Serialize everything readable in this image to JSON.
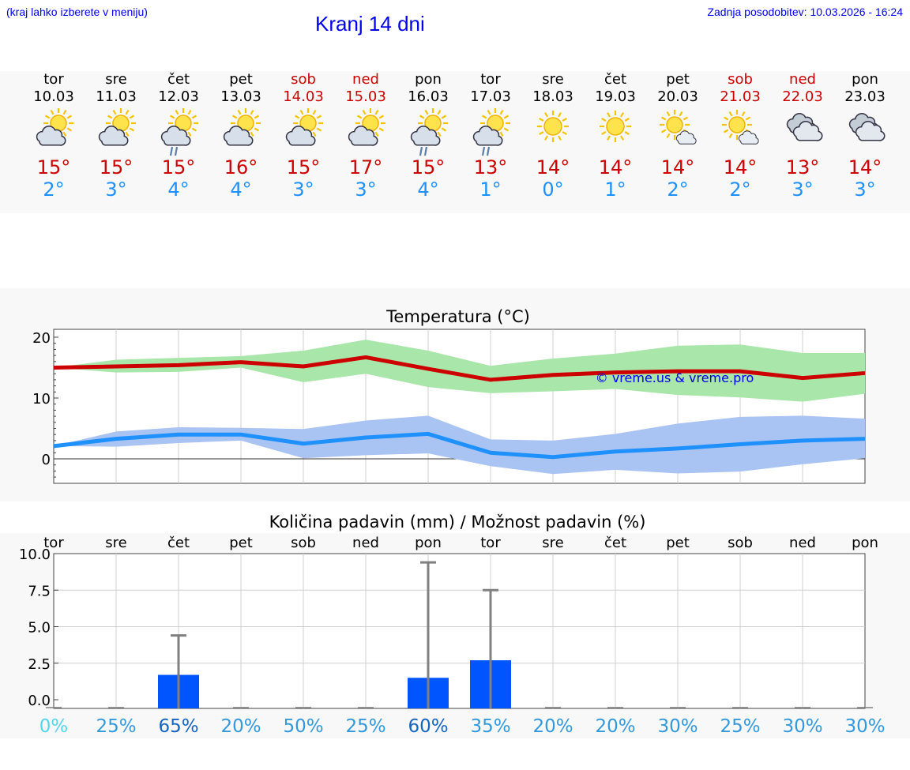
{
  "header": {
    "hint": "(kraj lahko izberete v meniju)",
    "title": "Kranj 14 dni",
    "updated": "Zadnja posodobitev: 10.03.2026 - 16:24"
  },
  "colors": {
    "max": "#cc0000",
    "min": "#1e90ff",
    "link": "#0000ee",
    "rain": "#0055ff"
  },
  "days": [
    {
      "name": "tor",
      "date": "10.03",
      "weekend": false,
      "icon": "sun-cloud-icon",
      "max": "15°",
      "min": "2°"
    },
    {
      "name": "sre",
      "date": "11.03",
      "weekend": false,
      "icon": "sun-cloud-icon",
      "max": "15°",
      "min": "3°"
    },
    {
      "name": "čet",
      "date": "12.03",
      "weekend": false,
      "icon": "sun-cloud-rain-icon",
      "max": "15°",
      "min": "4°"
    },
    {
      "name": "pet",
      "date": "13.03",
      "weekend": false,
      "icon": "sun-cloud-icon",
      "max": "16°",
      "min": "4°"
    },
    {
      "name": "sob",
      "date": "14.03",
      "weekend": true,
      "icon": "sun-cloud-icon",
      "max": "15°",
      "min": "3°"
    },
    {
      "name": "ned",
      "date": "15.03",
      "weekend": true,
      "icon": "sun-cloud-icon",
      "max": "17°",
      "min": "3°"
    },
    {
      "name": "pon",
      "date": "16.03",
      "weekend": false,
      "icon": "sun-cloud-rain-icon",
      "max": "15°",
      "min": "4°"
    },
    {
      "name": "tor",
      "date": "17.03",
      "weekend": false,
      "icon": "sun-cloud-rain-icon",
      "max": "13°",
      "min": "1°"
    },
    {
      "name": "sre",
      "date": "18.03",
      "weekend": false,
      "icon": "sun-icon",
      "max": "14°",
      "min": "0°"
    },
    {
      "name": "čet",
      "date": "19.03",
      "weekend": false,
      "icon": "sun-icon",
      "max": "14°",
      "min": "1°"
    },
    {
      "name": "pet",
      "date": "20.03",
      "weekend": false,
      "icon": "sun-small-cloud-icon",
      "max": "14°",
      "min": "2°"
    },
    {
      "name": "sob",
      "date": "21.03",
      "weekend": true,
      "icon": "sun-small-cloud-icon",
      "max": "14°",
      "min": "2°"
    },
    {
      "name": "ned",
      "date": "22.03",
      "weekend": true,
      "icon": "cloud-icon",
      "max": "13°",
      "min": "3°"
    },
    {
      "name": "pon",
      "date": "23.03",
      "weekend": false,
      "icon": "cloud-icon",
      "max": "14°",
      "min": "3°"
    }
  ],
  "chart_data": [
    {
      "type": "line",
      "title": "Temperatura (°C)",
      "watermark": "© vreme.us & vreme.pro",
      "ylim": [
        -4,
        21
      ],
      "yticks": [
        0,
        10,
        20
      ],
      "x": [
        "tor",
        "sre",
        "čet",
        "pet",
        "sob",
        "ned",
        "pon",
        "tor",
        "sre",
        "čet",
        "pet",
        "sob",
        "ned",
        "pon"
      ],
      "series": [
        {
          "name": "max",
          "values": [
            15,
            15.2,
            15.4,
            15.9,
            15.2,
            16.7,
            14.8,
            13,
            13.8,
            14.2,
            14.4,
            14.4,
            13.3,
            14.1
          ],
          "band_low": [
            15,
            14.2,
            14.3,
            15,
            12.6,
            14,
            11.8,
            10.8,
            11.1,
            11.5,
            10.5,
            10.1,
            9.4,
            10.7
          ],
          "band_high": [
            15,
            16.3,
            16.6,
            16.9,
            17.8,
            19.6,
            17.8,
            15.3,
            16.5,
            17.3,
            18.6,
            18.8,
            17.4,
            17.4
          ]
        },
        {
          "name": "min",
          "values": [
            2.1,
            3.3,
            4,
            4,
            2.5,
            3.5,
            4.1,
            1,
            0.3,
            1.2,
            1.7,
            2.4,
            3,
            3.3
          ],
          "band_low": [
            2.1,
            2,
            2.6,
            3,
            0.1,
            0.6,
            0.9,
            -1.2,
            -2.5,
            -1.8,
            -2.4,
            -2.1,
            -0.9,
            0.1
          ],
          "band_high": [
            2.1,
            4.5,
            5.2,
            5.1,
            4.9,
            6.3,
            7.1,
            3.2,
            3,
            4.1,
            5.8,
            6.9,
            7.1,
            6.6
          ]
        }
      ]
    },
    {
      "type": "bar",
      "title": "Količina padavin (mm) / Možnost padavin (%)",
      "ylim": [
        -0.5,
        10
      ],
      "yticks": [
        0,
        2.5,
        5,
        7.5,
        10
      ],
      "ytick_labels": [
        "0.0",
        "2.5",
        "5.0",
        "7.5",
        "10.0"
      ],
      "categories": [
        "tor",
        "sre",
        "čet",
        "pet",
        "sob",
        "ned",
        "pon",
        "tor",
        "sre",
        "čet",
        "pet",
        "sob",
        "ned",
        "pon"
      ],
      "values": [
        0,
        0,
        1.7,
        0,
        0,
        0,
        1.5,
        2.7,
        0,
        0,
        0,
        0,
        0,
        0
      ],
      "error_high": [
        0,
        0,
        4.4,
        0,
        0,
        0,
        9.4,
        7.5,
        0,
        0,
        0,
        0,
        0,
        0
      ],
      "probability": [
        "0%",
        "25%",
        "65%",
        "20%",
        "50%",
        "25%",
        "60%",
        "35%",
        "20%",
        "20%",
        "30%",
        "25%",
        "30%",
        "30%"
      ],
      "probability_values": [
        0,
        25,
        65,
        20,
        50,
        25,
        60,
        35,
        20,
        20,
        30,
        25,
        30,
        30
      ]
    }
  ]
}
